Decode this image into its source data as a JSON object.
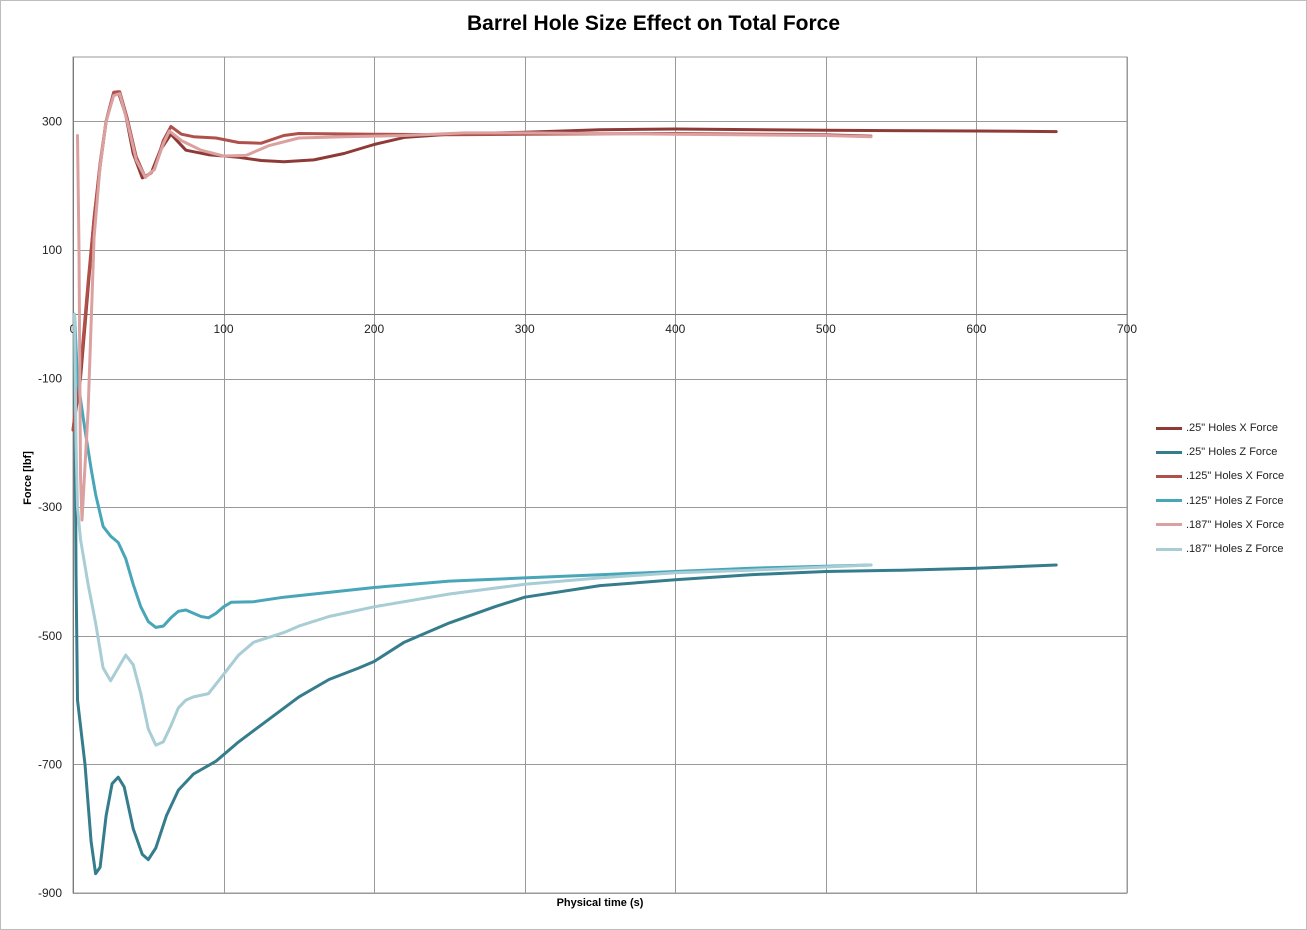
{
  "chart_data": {
    "type": "line",
    "title": "Barrel Hole Size Effect on Total Force",
    "xlabel": "Physical  time (s)",
    "ylabel": "Force  [lbf]",
    "xlim": [
      0,
      700
    ],
    "ylim": [
      -900,
      400
    ],
    "x_ticks": [
      0,
      100,
      200,
      300,
      400,
      500,
      600,
      700
    ],
    "y_ticks": [
      300,
      100,
      -100,
      -300,
      -500,
      -700,
      -900
    ],
    "grid": true,
    "legend_position": "right",
    "series": [
      {
        "name": ".25\" Holes X Force",
        "color": "#8e3b38",
        "points": [
          [
            0,
            -180
          ],
          [
            5,
            -100
          ],
          [
            10,
            40
          ],
          [
            14,
            150
          ],
          [
            18,
            230
          ],
          [
            22,
            300
          ],
          [
            27,
            345
          ],
          [
            30,
            346
          ],
          [
            35,
            310
          ],
          [
            40,
            250
          ],
          [
            46,
            212
          ],
          [
            52,
            220
          ],
          [
            58,
            255
          ],
          [
            65,
            280
          ],
          [
            75,
            255
          ],
          [
            90,
            248
          ],
          [
            110,
            244
          ],
          [
            125,
            239
          ],
          [
            140,
            237
          ],
          [
            160,
            240
          ],
          [
            180,
            250
          ],
          [
            200,
            264
          ],
          [
            220,
            275
          ],
          [
            250,
            280
          ],
          [
            300,
            283
          ],
          [
            350,
            287
          ],
          [
            400,
            288
          ],
          [
            500,
            286
          ],
          [
            600,
            285
          ],
          [
            653,
            284
          ]
        ]
      },
      {
        "name": ".25\" Holes Z Force",
        "color": "#357d8c",
        "points": [
          [
            1,
            0
          ],
          [
            2,
            -400
          ],
          [
            3,
            -600
          ],
          [
            8,
            -700
          ],
          [
            12,
            -820
          ],
          [
            15,
            -870
          ],
          [
            18,
            -860
          ],
          [
            22,
            -780
          ],
          [
            26,
            -730
          ],
          [
            30,
            -720
          ],
          [
            34,
            -735
          ],
          [
            40,
            -800
          ],
          [
            46,
            -840
          ],
          [
            50,
            -848
          ],
          [
            55,
            -830
          ],
          [
            62,
            -780
          ],
          [
            70,
            -740
          ],
          [
            80,
            -715
          ],
          [
            95,
            -695
          ],
          [
            110,
            -665
          ],
          [
            130,
            -630
          ],
          [
            150,
            -595
          ],
          [
            170,
            -568
          ],
          [
            190,
            -550
          ],
          [
            200,
            -540
          ],
          [
            220,
            -510
          ],
          [
            250,
            -480
          ],
          [
            280,
            -455
          ],
          [
            300,
            -440
          ],
          [
            350,
            -422
          ],
          [
            400,
            -413
          ],
          [
            450,
            -405
          ],
          [
            500,
            -400
          ],
          [
            550,
            -398
          ],
          [
            600,
            -395
          ],
          [
            653,
            -390
          ]
        ]
      },
      {
        "name": ".125\" Holes X Force",
        "color": "#b0504a",
        "points": [
          [
            0,
            -180
          ],
          [
            6,
            -60
          ],
          [
            10,
            50
          ],
          [
            14,
            150
          ],
          [
            18,
            235
          ],
          [
            22,
            300
          ],
          [
            27,
            345
          ],
          [
            31,
            346
          ],
          [
            36,
            305
          ],
          [
            42,
            245
          ],
          [
            48,
            213
          ],
          [
            54,
            225
          ],
          [
            60,
            270
          ],
          [
            65,
            292
          ],
          [
            72,
            280
          ],
          [
            80,
            276
          ],
          [
            95,
            274
          ],
          [
            110,
            267
          ],
          [
            125,
            266
          ],
          [
            140,
            278
          ],
          [
            150,
            281
          ],
          [
            200,
            280
          ],
          [
            250,
            279
          ],
          [
            300,
            280
          ],
          [
            400,
            281
          ],
          [
            500,
            279
          ],
          [
            530,
            277
          ]
        ]
      },
      {
        "name": ".125\" Holes Z Force",
        "color": "#48a6b8",
        "points": [
          [
            1,
            0
          ],
          [
            3,
            -100
          ],
          [
            8,
            -180
          ],
          [
            12,
            -240
          ],
          [
            15,
            -280
          ],
          [
            20,
            -330
          ],
          [
            25,
            -345
          ],
          [
            30,
            -355
          ],
          [
            35,
            -380
          ],
          [
            40,
            -420
          ],
          [
            45,
            -455
          ],
          [
            50,
            -478
          ],
          [
            55,
            -487
          ],
          [
            60,
            -485
          ],
          [
            65,
            -472
          ],
          [
            70,
            -462
          ],
          [
            75,
            -460
          ],
          [
            80,
            -465
          ],
          [
            85,
            -470
          ],
          [
            90,
            -472
          ],
          [
            95,
            -465
          ],
          [
            100,
            -455
          ],
          [
            105,
            -448
          ],
          [
            120,
            -447
          ],
          [
            140,
            -440
          ],
          [
            160,
            -435
          ],
          [
            200,
            -425
          ],
          [
            250,
            -415
          ],
          [
            300,
            -410
          ],
          [
            350,
            -405
          ],
          [
            400,
            -400
          ],
          [
            450,
            -395
          ],
          [
            500,
            -392
          ],
          [
            530,
            -390
          ]
        ]
      },
      {
        "name": ".187\" Holes X Force",
        "color": "#dba0a0",
        "points": [
          [
            3,
            278
          ],
          [
            4,
            100
          ],
          [
            5,
            -250
          ],
          [
            6,
            -320
          ],
          [
            10,
            -150
          ],
          [
            14,
            120
          ],
          [
            18,
            230
          ],
          [
            22,
            300
          ],
          [
            27,
            340
          ],
          [
            31,
            343
          ],
          [
            36,
            300
          ],
          [
            42,
            240
          ],
          [
            48,
            213
          ],
          [
            54,
            225
          ],
          [
            60,
            265
          ],
          [
            64,
            285
          ],
          [
            72,
            270
          ],
          [
            85,
            255
          ],
          [
            100,
            246
          ],
          [
            115,
            247
          ],
          [
            130,
            262
          ],
          [
            150,
            274
          ],
          [
            180,
            276
          ],
          [
            220,
            278
          ],
          [
            260,
            282
          ],
          [
            300,
            282
          ],
          [
            400,
            280
          ],
          [
            500,
            278
          ],
          [
            530,
            276
          ]
        ]
      },
      {
        "name": ".187\" Holes Z Force",
        "color": "#a8cdd5",
        "points": [
          [
            1,
            0
          ],
          [
            2,
            -200
          ],
          [
            3,
            -300
          ],
          [
            5,
            -350
          ],
          [
            10,
            -420
          ],
          [
            15,
            -480
          ],
          [
            20,
            -550
          ],
          [
            25,
            -570
          ],
          [
            30,
            -550
          ],
          [
            35,
            -530
          ],
          [
            40,
            -545
          ],
          [
            45,
            -590
          ],
          [
            50,
            -645
          ],
          [
            55,
            -670
          ],
          [
            60,
            -665
          ],
          [
            65,
            -640
          ],
          [
            70,
            -612
          ],
          [
            75,
            -600
          ],
          [
            80,
            -595
          ],
          [
            90,
            -590
          ],
          [
            100,
            -560
          ],
          [
            110,
            -530
          ],
          [
            120,
            -510
          ],
          [
            140,
            -495
          ],
          [
            150,
            -485
          ],
          [
            170,
            -470
          ],
          [
            200,
            -455
          ],
          [
            250,
            -435
          ],
          [
            300,
            -420
          ],
          [
            350,
            -410
          ],
          [
            400,
            -402
          ],
          [
            450,
            -398
          ],
          [
            500,
            -393
          ],
          [
            530,
            -390
          ]
        ]
      }
    ]
  }
}
